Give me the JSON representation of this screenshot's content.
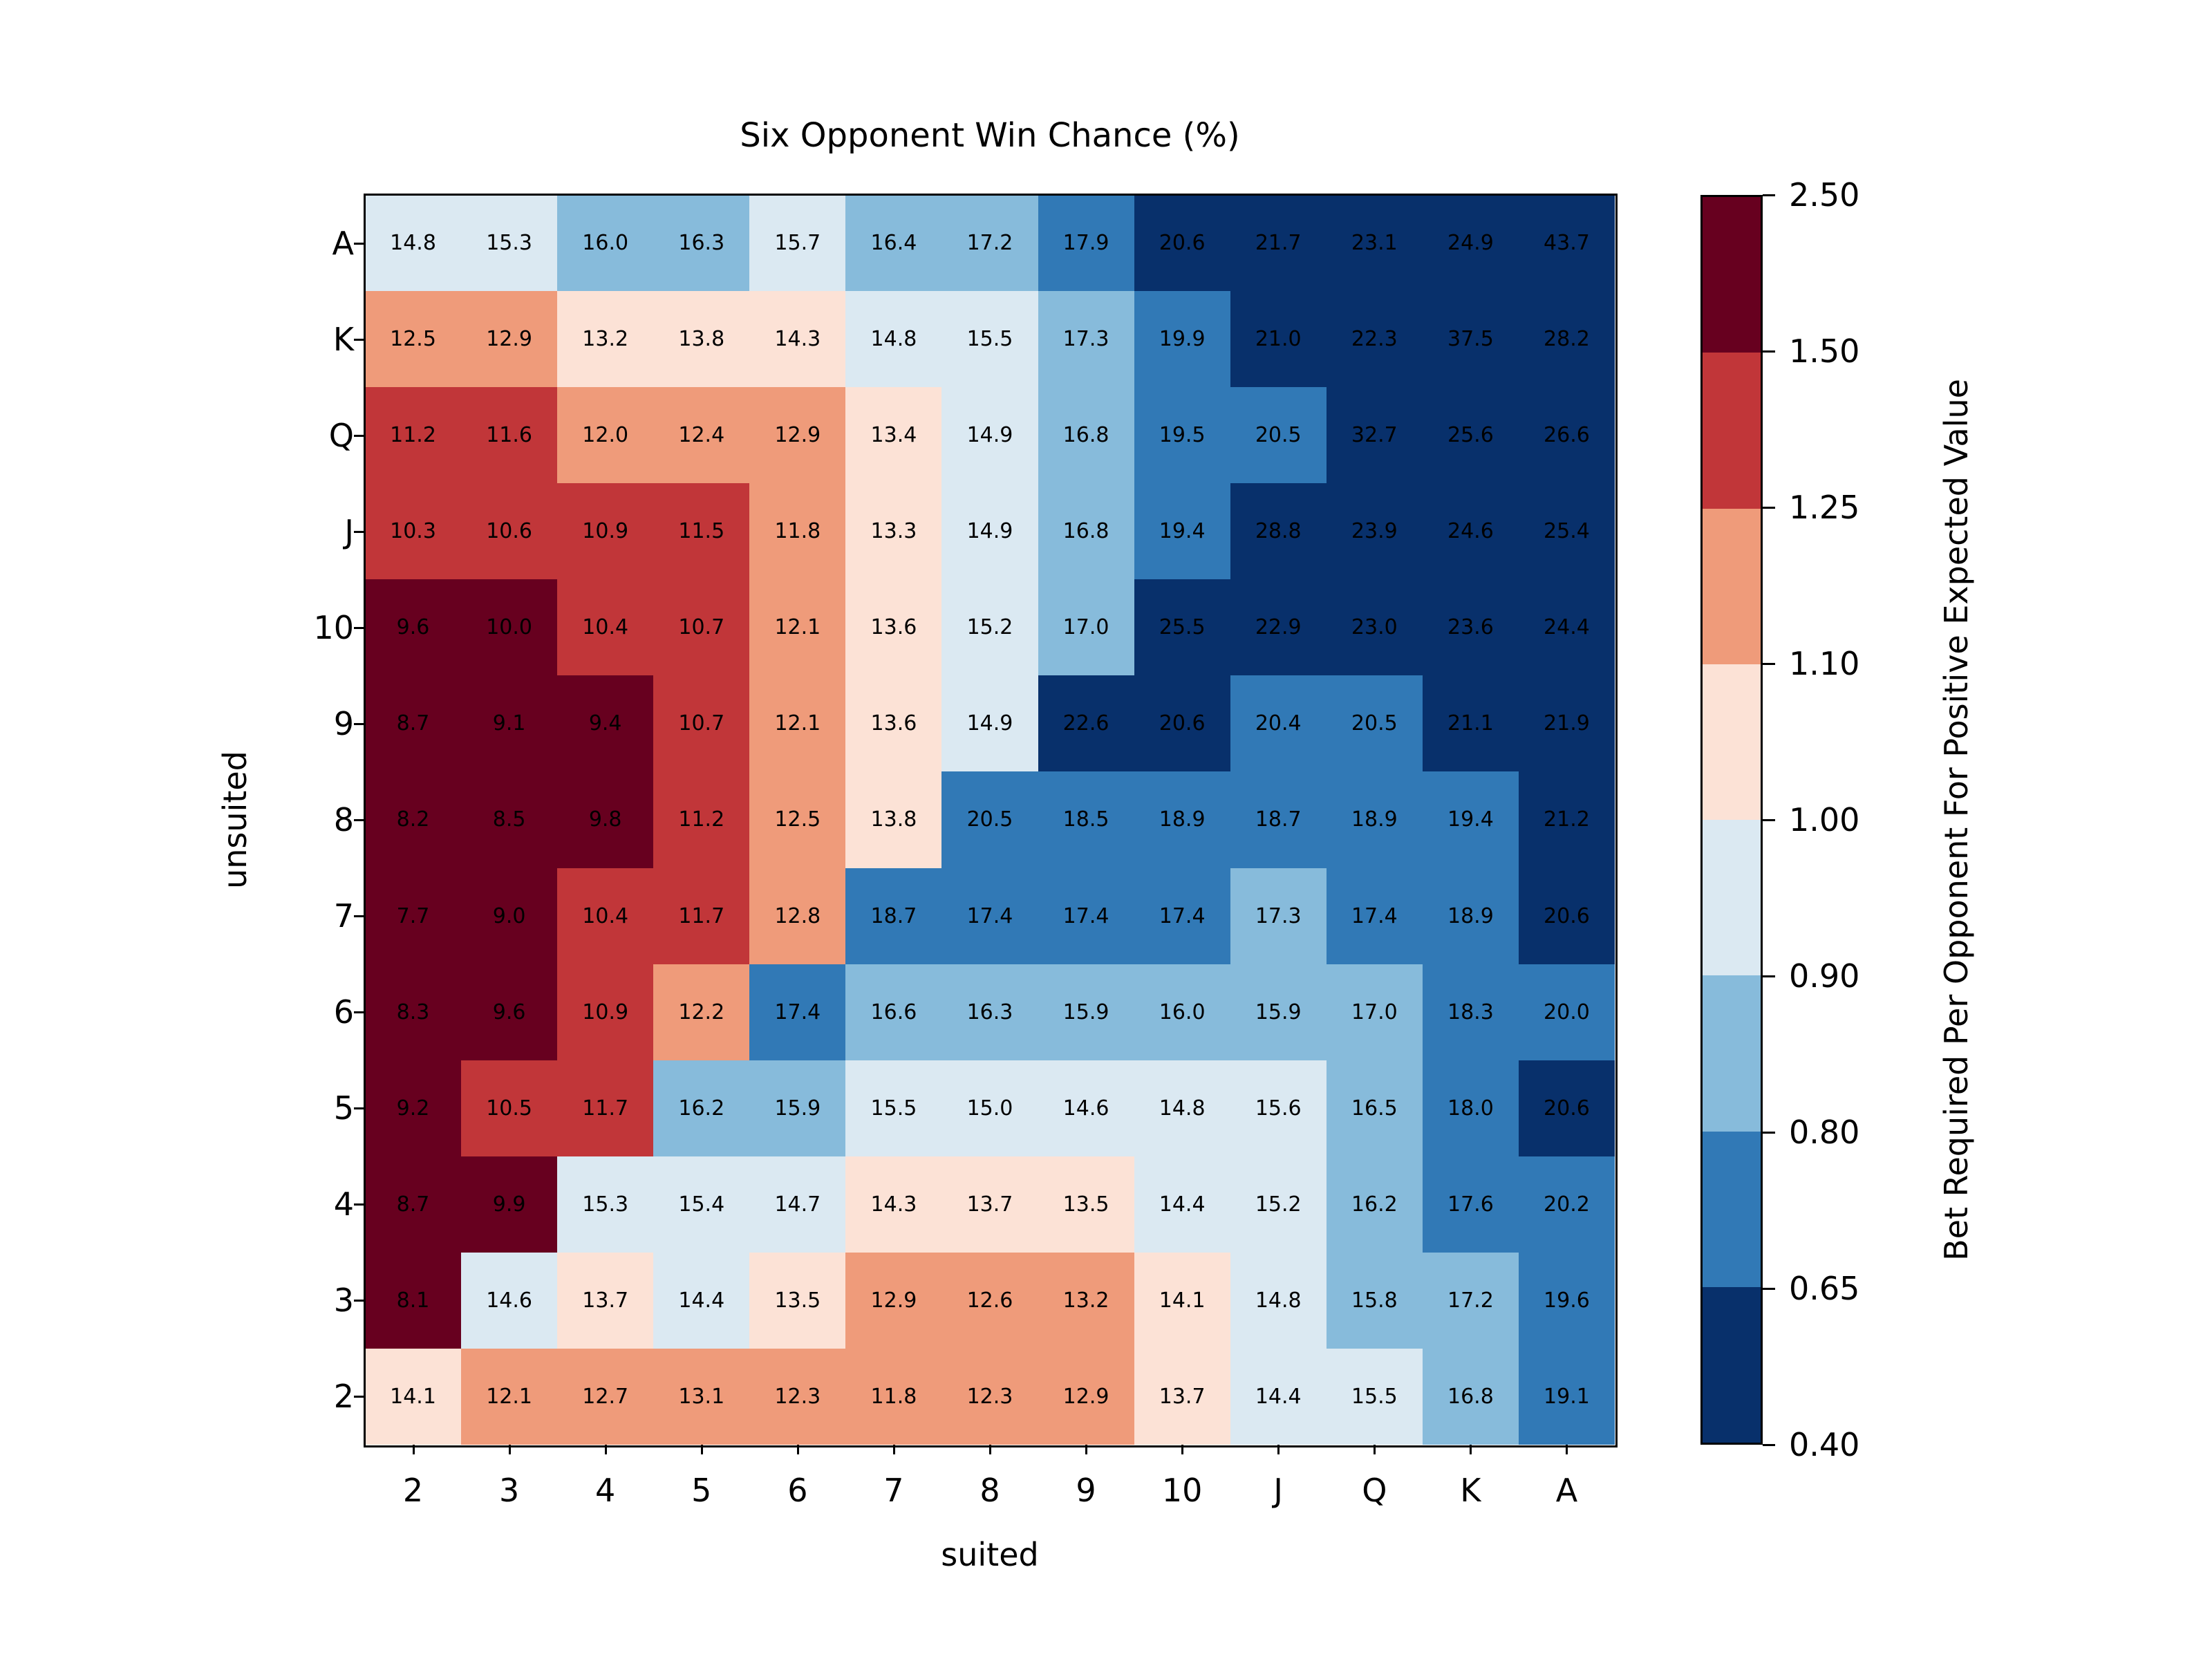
{
  "chart_data": {
    "type": "heatmap",
    "title": "Six Opponent Win Chance (%)",
    "xlabel": "suited",
    "ylabel": "unsuited",
    "x_categories": [
      "2",
      "3",
      "4",
      "5",
      "6",
      "7",
      "8",
      "9",
      "10",
      "J",
      "Q",
      "K",
      "A"
    ],
    "y_categories": [
      "A",
      "K",
      "Q",
      "J",
      "10",
      "9",
      "8",
      "7",
      "6",
      "5",
      "4",
      "3",
      "2"
    ],
    "values": [
      [
        14.8,
        15.3,
        16.0,
        16.3,
        15.7,
        16.4,
        17.2,
        17.9,
        20.6,
        21.7,
        23.1,
        24.9,
        43.7
      ],
      [
        12.5,
        12.9,
        13.2,
        13.8,
        14.3,
        14.8,
        15.5,
        17.3,
        19.9,
        21.0,
        22.3,
        37.5,
        28.2
      ],
      [
        11.2,
        11.6,
        12.0,
        12.4,
        12.9,
        13.4,
        14.9,
        16.8,
        19.5,
        20.5,
        32.7,
        25.6,
        26.6
      ],
      [
        10.3,
        10.6,
        10.9,
        11.5,
        11.8,
        13.3,
        14.9,
        16.8,
        19.4,
        28.8,
        23.9,
        24.6,
        25.4
      ],
      [
        9.6,
        10.0,
        10.4,
        10.7,
        12.1,
        13.6,
        15.2,
        17.0,
        25.5,
        22.9,
        23.0,
        23.6,
        24.4
      ],
      [
        8.7,
        9.1,
        9.4,
        10.7,
        12.1,
        13.6,
        14.9,
        22.6,
        20.6,
        20.4,
        20.5,
        21.1,
        21.9
      ],
      [
        8.2,
        8.5,
        9.8,
        11.2,
        12.5,
        13.8,
        20.5,
        18.5,
        18.9,
        18.7,
        18.9,
        19.4,
        21.2
      ],
      [
        7.7,
        9.0,
        10.4,
        11.7,
        12.8,
        18.7,
        17.4,
        17.4,
        17.4,
        17.3,
        17.4,
        18.9,
        20.6
      ],
      [
        8.3,
        9.6,
        10.9,
        12.2,
        17.4,
        16.6,
        16.3,
        15.9,
        16.0,
        15.9,
        17.0,
        18.3,
        20.0
      ],
      [
        9.2,
        10.5,
        11.7,
        16.2,
        15.9,
        15.5,
        15.0,
        14.6,
        14.8,
        15.6,
        16.5,
        18.0,
        20.6
      ],
      [
        8.7,
        9.9,
        15.3,
        15.4,
        14.7,
        14.3,
        13.7,
        13.5,
        14.4,
        15.2,
        16.2,
        17.6,
        20.2
      ],
      [
        8.1,
        14.6,
        13.7,
        14.4,
        13.5,
        12.9,
        12.6,
        13.2,
        14.1,
        14.8,
        15.8,
        17.2,
        19.6
      ],
      [
        14.1,
        12.1,
        12.7,
        13.1,
        12.3,
        11.8,
        12.3,
        12.9,
        13.7,
        14.4,
        15.5,
        16.8,
        19.1
      ]
    ],
    "color_bins": [
      [
        3,
        3,
        2,
        2,
        3,
        2,
        2,
        1,
        0,
        0,
        0,
        0,
        0
      ],
      [
        5,
        5,
        4,
        4,
        4,
        3,
        3,
        2,
        1,
        0,
        0,
        0,
        0
      ],
      [
        6,
        6,
        5,
        5,
        5,
        4,
        3,
        2,
        1,
        1,
        0,
        0,
        0
      ],
      [
        6,
        6,
        6,
        6,
        5,
        4,
        3,
        2,
        1,
        0,
        0,
        0,
        0
      ],
      [
        7,
        7,
        6,
        6,
        5,
        4,
        3,
        2,
        0,
        0,
        0,
        0,
        0
      ],
      [
        7,
        7,
        7,
        6,
        5,
        4,
        3,
        0,
        0,
        1,
        1,
        0,
        0
      ],
      [
        7,
        7,
        7,
        6,
        5,
        4,
        1,
        1,
        1,
        1,
        1,
        1,
        0
      ],
      [
        7,
        7,
        6,
        6,
        5,
        1,
        1,
        1,
        1,
        2,
        1,
        1,
        0
      ],
      [
        7,
        7,
        6,
        5,
        1,
        2,
        2,
        2,
        2,
        2,
        2,
        1,
        1
      ],
      [
        7,
        6,
        6,
        2,
        2,
        3,
        3,
        3,
        3,
        3,
        2,
        1,
        0
      ],
      [
        7,
        7,
        3,
        3,
        3,
        4,
        4,
        4,
        3,
        3,
        2,
        1,
        1
      ],
      [
        7,
        3,
        4,
        3,
        4,
        5,
        5,
        5,
        4,
        3,
        2,
        2,
        1
      ],
      [
        4,
        5,
        5,
        5,
        5,
        5,
        5,
        5,
        4,
        3,
        3,
        2,
        1
      ]
    ],
    "colorbar": {
      "label": "Bet Required Per Opponent For Positive Expected Value",
      "boundaries": [
        0.4,
        0.65,
        0.8,
        0.9,
        1.0,
        1.1,
        1.25,
        1.5,
        2.5
      ],
      "tick_labels": [
        "0.40",
        "0.65",
        "0.80",
        "0.90",
        "1.00",
        "1.10",
        "1.25",
        "1.50",
        "2.50"
      ],
      "colors": [
        "#08306b",
        "#3179b6",
        "#87bbdb",
        "#dbe9f2",
        "#fce2d6",
        "#ef9b7a",
        "#c13639",
        "#67001f"
      ]
    }
  }
}
